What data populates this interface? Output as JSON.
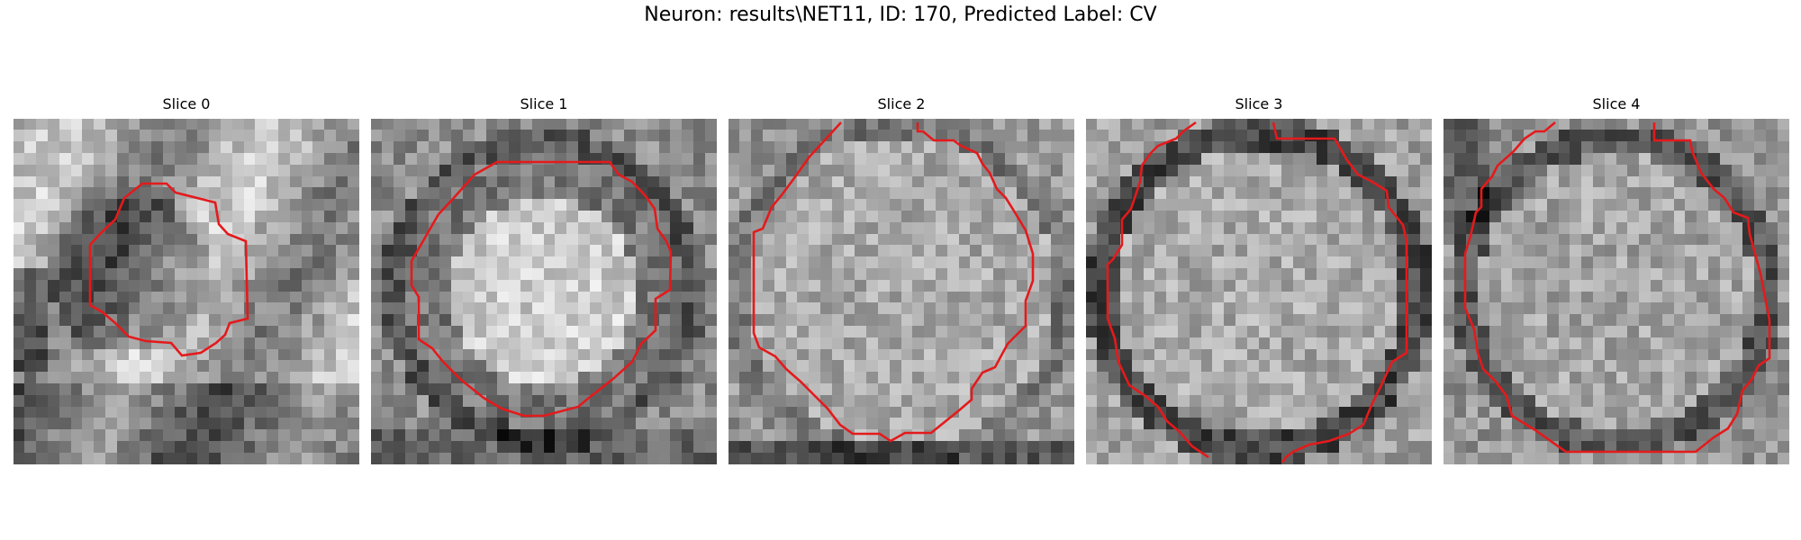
{
  "figure": {
    "title": "Neuron: results\\NET11, ID: 170, Predicted Label: CV",
    "colormap": "gray",
    "contour_color": "#e41a1c"
  },
  "slices": [
    {
      "title": "Slice 0",
      "pattern": "small-dark-blob",
      "seed": 11
    },
    {
      "title": "Slice 1",
      "pattern": "bright-core",
      "seed": 23
    },
    {
      "title": "Slice 2",
      "pattern": "large-textured",
      "seed": 37
    },
    {
      "title": "Slice 3",
      "pattern": "ring-dark-edge",
      "seed": 41
    },
    {
      "title": "Slice 4",
      "pattern": "large-ring",
      "seed": 53
    }
  ]
}
